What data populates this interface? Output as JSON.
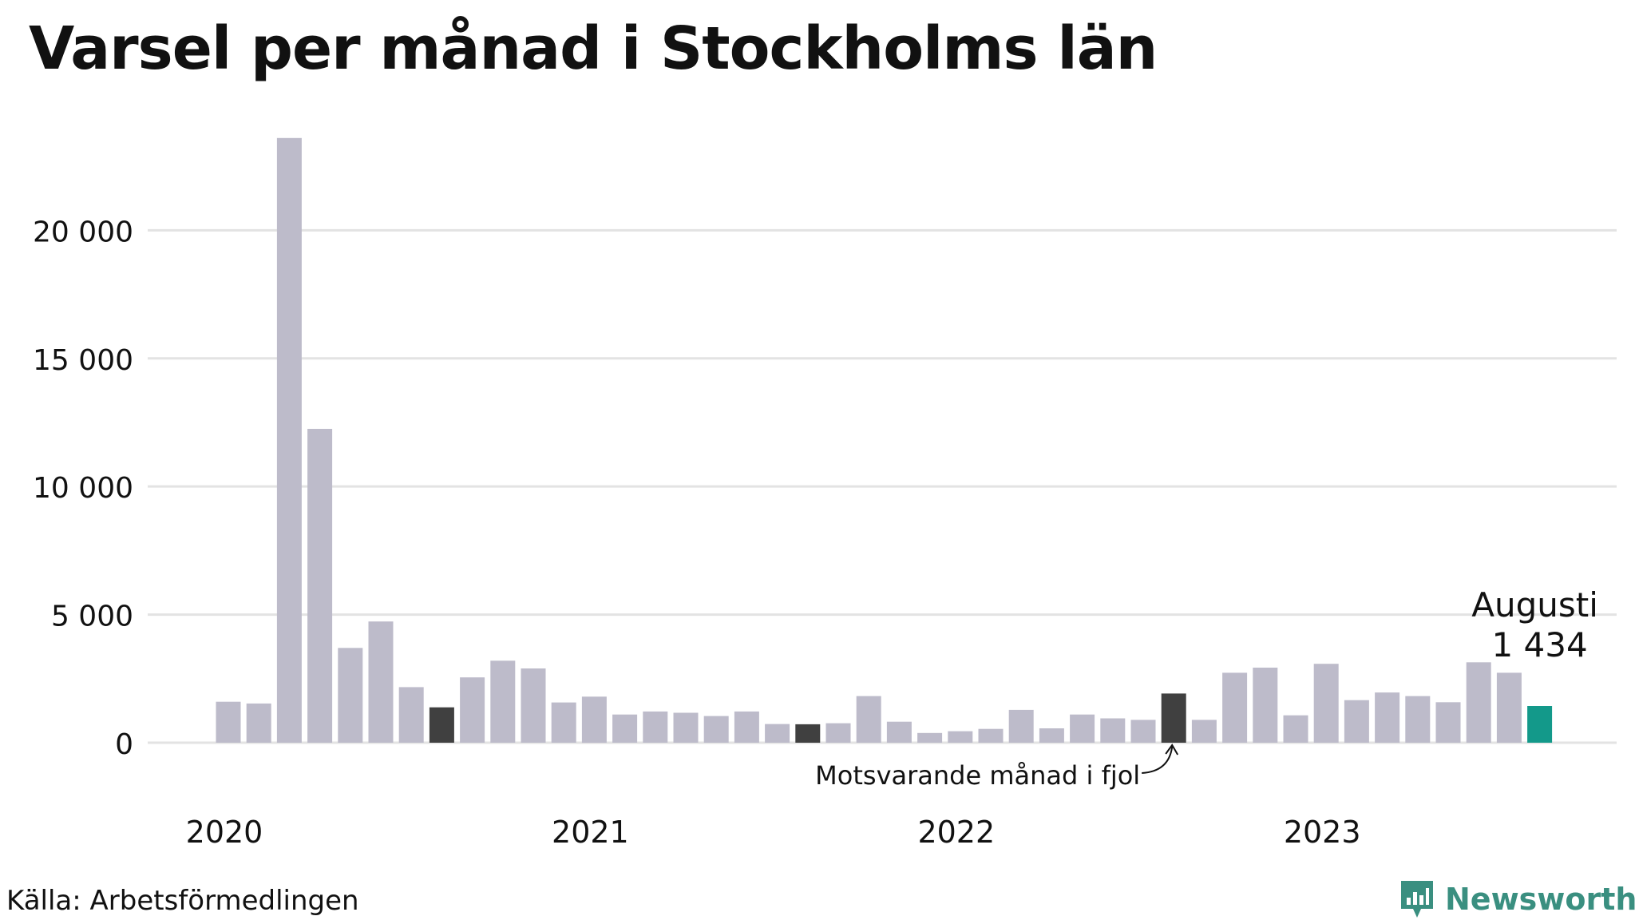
{
  "title": "Varsel per månad i Stockholms län",
  "source": "Källa: Arbetsförmedlingen",
  "brand": {
    "name": "Newsworthy",
    "icon": "newsworthy-logo-icon",
    "color": "#3a8f80"
  },
  "colors": {
    "bar": "#bdbbca",
    "comparison": "#404040",
    "current": "#13998a",
    "grid": "#e3e3e3"
  },
  "annotations": {
    "current_label": "Augusti",
    "current_value": "1 434",
    "comparison_label": "Motsvarande månad i fjol"
  },
  "chart_data": {
    "type": "bar",
    "title": "Varsel per månad i Stockholms län",
    "xlabel": "",
    "ylabel": "",
    "ylim": [
      0,
      24000
    ],
    "yticks": [
      0,
      5000,
      10000,
      15000,
      20000
    ],
    "ytick_labels": [
      "0",
      "5 000",
      "10 000",
      "15 000",
      "20 000"
    ],
    "xtick_labels": [
      "2020",
      "2021",
      "2022",
      "2023"
    ],
    "grid": true,
    "categories": [
      "2020-01",
      "2020-02",
      "2020-03",
      "2020-04",
      "2020-05",
      "2020-06",
      "2020-07",
      "2020-08",
      "2020-09",
      "2020-10",
      "2020-11",
      "2020-12",
      "2021-01",
      "2021-02",
      "2021-03",
      "2021-04",
      "2021-05",
      "2021-06",
      "2021-07",
      "2021-08",
      "2021-09",
      "2021-10",
      "2021-11",
      "2021-12",
      "2022-01",
      "2022-02",
      "2022-03",
      "2022-04",
      "2022-05",
      "2022-06",
      "2022-07",
      "2022-08",
      "2022-09",
      "2022-10",
      "2022-11",
      "2022-12",
      "2023-01",
      "2023-02",
      "2023-03",
      "2023-04",
      "2023-05",
      "2023-06",
      "2023-07",
      "2023-08"
    ],
    "values": [
      1600,
      1530,
      23600,
      12250,
      3700,
      4730,
      2170,
      1380,
      2550,
      3200,
      2900,
      1570,
      1800,
      1100,
      1220,
      1170,
      1040,
      1220,
      730,
      720,
      760,
      1820,
      820,
      380,
      450,
      540,
      1280,
      560,
      1100,
      950,
      890,
      1920,
      890,
      2730,
      2930,
      1070,
      3080,
      1660,
      1960,
      1820,
      1580,
      3140,
      2730,
      1434
    ],
    "highlight_comparison": [
      "2020-08",
      "2021-08",
      "2022-08"
    ],
    "highlight_current": "2023-08"
  }
}
